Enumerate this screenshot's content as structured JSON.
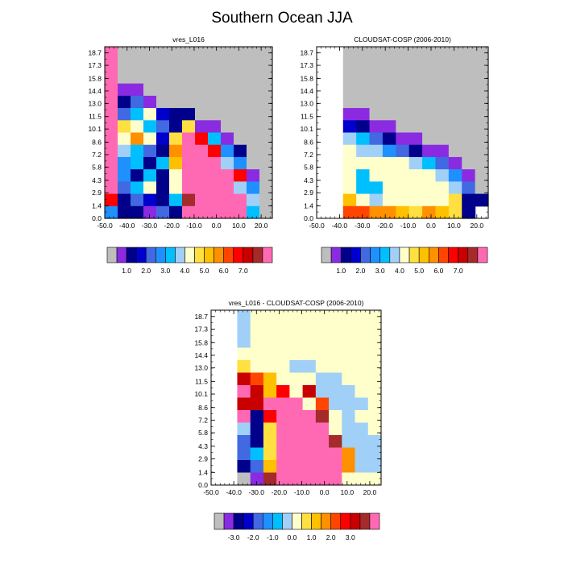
{
  "title": "Southern Ocean JJA",
  "chart_data": [
    {
      "type": "heatmap",
      "title": "vres_L016",
      "x_ticks": [
        "-50.0",
        "-40.0",
        "-30.0",
        "-20.0",
        "-10.0",
        "0.0",
        "10.0",
        "20.0"
      ],
      "y_ticks": [
        "0.0",
        "1.4",
        "2.9",
        "4.3",
        "5.8",
        "7.2",
        "8.6",
        "10.1",
        "11.5",
        "13.0",
        "14.4",
        "15.8",
        "17.3",
        "18.7"
      ],
      "xlim": [
        -50,
        25
      ],
      "ylim": [
        0,
        19.4
      ],
      "colorbar": {
        "tick_labels": [
          "1.0",
          "2.0",
          "3.0",
          "4.0",
          "5.0",
          "6.0",
          "7.0"
        ],
        "colors": [
          "#bebebe",
          "#8a2be2",
          "#00008b",
          "#0000cd",
          "#4169e1",
          "#1e90ff",
          "#00bfff",
          "#a0d0f8",
          "#ffffcc",
          "#ffe040",
          "#ffc000",
          "#ff9000",
          "#ff4500",
          "#ff0000",
          "#c80000",
          "#a52a2a",
          "#ff69b4"
        ]
      }
    },
    {
      "type": "heatmap",
      "title": "CLOUDSAT-COSP (2006-2010)",
      "x_ticks": [
        "-50.0",
        "-40.0",
        "-30.0",
        "-20.0",
        "-10.0",
        "0.0",
        "10.0",
        "20.0"
      ],
      "y_ticks": [
        "0.0",
        "1.4",
        "2.9",
        "4.3",
        "5.8",
        "7.2",
        "8.6",
        "10.1",
        "11.5",
        "13.0",
        "14.4",
        "15.8",
        "17.3",
        "18.7"
      ],
      "xlim": [
        -50,
        25
      ],
      "ylim": [
        0,
        19.4
      ],
      "colorbar": {
        "tick_labels": [
          "1.0",
          "2.0",
          "3.0",
          "4.0",
          "5.0",
          "6.0",
          "7.0"
        ],
        "colors": [
          "#bebebe",
          "#8a2be2",
          "#00008b",
          "#0000cd",
          "#4169e1",
          "#1e90ff",
          "#00bfff",
          "#a0d0f8",
          "#ffffcc",
          "#ffe040",
          "#ffc000",
          "#ff9000",
          "#ff4500",
          "#ff0000",
          "#c80000",
          "#a52a2a",
          "#ff69b4"
        ]
      }
    },
    {
      "type": "heatmap",
      "title": "vres_L016 - CLOUDSAT-COSP (2006-2010)",
      "x_ticks": [
        "-50.0",
        "-40.0",
        "-30.0",
        "-20.0",
        "-10.0",
        "0.0",
        "10.0",
        "20.0"
      ],
      "y_ticks": [
        "0.0",
        "1.4",
        "2.9",
        "4.3",
        "5.8",
        "7.2",
        "8.6",
        "10.1",
        "11.5",
        "13.0",
        "14.4",
        "15.8",
        "17.3",
        "18.7"
      ],
      "xlim": [
        -50,
        25
      ],
      "ylim": [
        0,
        19.4
      ],
      "colorbar": {
        "tick_labels": [
          "-3.0",
          "-2.0",
          "-1.0",
          "0.0",
          "1.0",
          "2.0",
          "3.0"
        ],
        "colors": [
          "#bebebe",
          "#8a2be2",
          "#00008b",
          "#0000cd",
          "#4169e1",
          "#1e90ff",
          "#00bfff",
          "#a0d0f8",
          "#ffffcc",
          "#ffe040",
          "#ffc000",
          "#ff9000",
          "#ff4500",
          "#ff0000",
          "#c80000",
          "#a52a2a",
          "#ff69b4"
        ]
      }
    }
  ]
}
